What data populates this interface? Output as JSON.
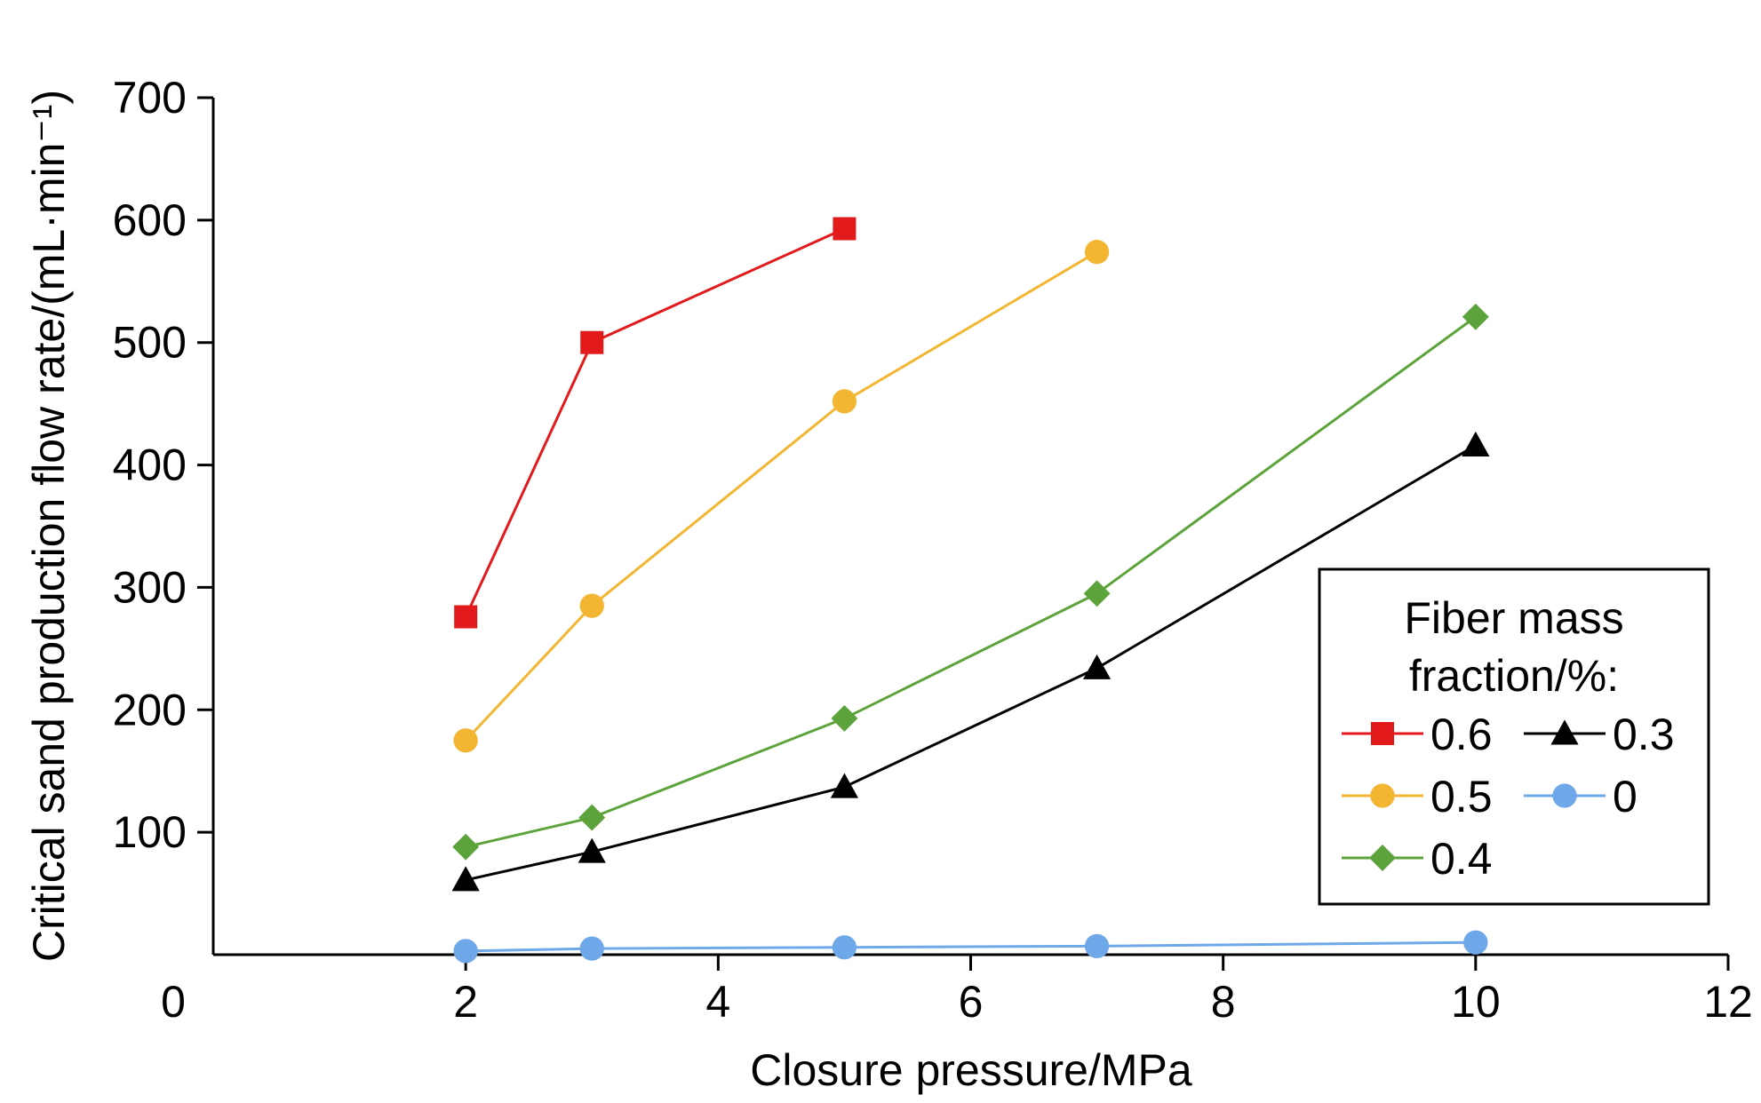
{
  "chart_data": {
    "type": "line",
    "xlabel": "Closure pressure/MPa",
    "ylabel": "Critical sand production flow rate/(mL·min⁻¹)",
    "xlim": [
      0,
      12
    ],
    "ylim": [
      0,
      700
    ],
    "x_ticks": [
      "0",
      "2",
      "4",
      "6",
      "8",
      "10",
      "12"
    ],
    "y_ticks": [
      "100",
      "200",
      "300",
      "400",
      "500",
      "600",
      "700"
    ],
    "grid": false,
    "legend": {
      "title_line1": "Fiber mass",
      "title_line2": "fraction/%:",
      "placement": "right"
    },
    "series": [
      {
        "name": "0.6",
        "color": "#e31a1c",
        "marker": "square",
        "x": [
          2,
          3,
          5
        ],
        "y": [
          276,
          500,
          593
        ]
      },
      {
        "name": "0.5",
        "color": "#f2b632",
        "marker": "circle",
        "x": [
          2,
          3,
          5,
          7
        ],
        "y": [
          175,
          285,
          452,
          574
        ]
      },
      {
        "name": "0.4",
        "color": "#5da33b",
        "marker": "diamond",
        "x": [
          2,
          3,
          5,
          7,
          10
        ],
        "y": [
          88,
          112,
          193,
          295,
          521
        ]
      },
      {
        "name": "0.3",
        "color": "#000000",
        "marker": "triangle",
        "x": [
          2,
          3,
          5,
          7,
          10
        ],
        "y": [
          61,
          84,
          137,
          234,
          416
        ]
      },
      {
        "name": "0",
        "color": "#6fa8e8",
        "marker": "circle",
        "x": [
          2,
          3,
          5,
          7,
          10
        ],
        "y": [
          3,
          5,
          6,
          7,
          10
        ]
      }
    ]
  }
}
